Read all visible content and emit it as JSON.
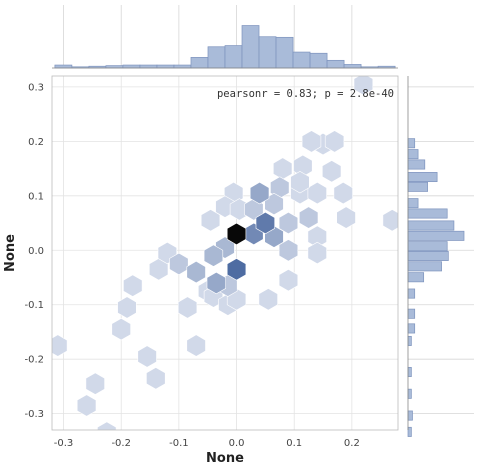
{
  "chart_data": {
    "type": "hexbin",
    "xlabel": "None",
    "ylabel": "None",
    "xlim": [
      -0.32,
      0.28
    ],
    "ylim": [
      -0.33,
      0.32
    ],
    "xticks": [
      "-0.3",
      "-0.2",
      "-0.1",
      "0.0",
      "0.1",
      "0.2"
    ],
    "xtick_values": [
      -0.3,
      -0.2,
      -0.1,
      0.0,
      0.1,
      0.2
    ],
    "yticks": [
      "0.3",
      "0.2",
      "0.1",
      "0.0",
      "-0.1",
      "-0.2",
      "-0.3"
    ],
    "ytick_values": [
      0.3,
      0.2,
      0.1,
      0.0,
      -0.1,
      -0.2,
      -0.3
    ],
    "annotation": "pearsonr = 0.83; p = 2.8e-40",
    "grid": true,
    "colormap_color": "#2c4f8f",
    "hexbins": [
      {
        "x": 0.0,
        "y": 0.03,
        "count": 10
      },
      {
        "x": 0.05,
        "y": 0.05,
        "count": 7
      },
      {
        "x": 0.0,
        "y": -0.035,
        "count": 8
      },
      {
        "x": 0.03,
        "y": 0.03,
        "count": 6
      },
      {
        "x": 0.065,
        "y": 0.025,
        "count": 4
      },
      {
        "x": 0.04,
        "y": 0.105,
        "count": 4
      },
      {
        "x": -0.02,
        "y": 0.005,
        "count": 3
      },
      {
        "x": 0.03,
        "y": 0.075,
        "count": 2
      },
      {
        "x": -0.04,
        "y": -0.01,
        "count": 3
      },
      {
        "x": -0.07,
        "y": -0.04,
        "count": 3
      },
      {
        "x": -0.035,
        "y": -0.06,
        "count": 4
      },
      {
        "x": -0.1,
        "y": -0.025,
        "count": 2
      },
      {
        "x": -0.015,
        "y": -0.065,
        "count": 2
      },
      {
        "x": 0.09,
        "y": 0.05,
        "count": 2
      },
      {
        "x": 0.075,
        "y": 0.115,
        "count": 2
      },
      {
        "x": 0.09,
        "y": 0.0,
        "count": 2
      },
      {
        "x": 0.125,
        "y": 0.06,
        "count": 2
      },
      {
        "x": 0.065,
        "y": 0.085,
        "count": 2
      },
      {
        "x": -0.005,
        "y": 0.105,
        "count": 1
      },
      {
        "x": -0.045,
        "y": 0.055,
        "count": 1
      },
      {
        "x": -0.02,
        "y": 0.08,
        "count": 1
      },
      {
        "x": 0.005,
        "y": 0.075,
        "count": 1
      },
      {
        "x": -0.05,
        "y": -0.075,
        "count": 1
      },
      {
        "x": -0.085,
        "y": -0.105,
        "count": 1
      },
      {
        "x": -0.04,
        "y": -0.085,
        "count": 1
      },
      {
        "x": -0.015,
        "y": -0.1,
        "count": 1
      },
      {
        "x": 0.0,
        "y": -0.09,
        "count": 1
      },
      {
        "x": -0.135,
        "y": -0.035,
        "count": 1
      },
      {
        "x": -0.12,
        "y": -0.005,
        "count": 1
      },
      {
        "x": 0.11,
        "y": 0.105,
        "count": 1
      },
      {
        "x": 0.115,
        "y": 0.155,
        "count": 1
      },
      {
        "x": 0.14,
        "y": 0.105,
        "count": 1
      },
      {
        "x": 0.165,
        "y": 0.145,
        "count": 1
      },
      {
        "x": 0.185,
        "y": 0.105,
        "count": 1
      },
      {
        "x": 0.15,
        "y": 0.195,
        "count": 1
      },
      {
        "x": 0.13,
        "y": 0.2,
        "count": 1
      },
      {
        "x": 0.17,
        "y": 0.2,
        "count": 1
      },
      {
        "x": 0.11,
        "y": 0.125,
        "count": 1
      },
      {
        "x": 0.19,
        "y": 0.06,
        "count": 1
      },
      {
        "x": 0.14,
        "y": 0.025,
        "count": 1
      },
      {
        "x": 0.14,
        "y": -0.005,
        "count": 1
      },
      {
        "x": 0.09,
        "y": -0.055,
        "count": 1
      },
      {
        "x": 0.055,
        "y": -0.09,
        "count": 1
      },
      {
        "x": 0.27,
        "y": 0.055,
        "count": 1
      },
      {
        "x": 0.22,
        "y": 0.305,
        "count": 1
      },
      {
        "x": 0.08,
        "y": 0.15,
        "count": 1
      },
      {
        "x": -0.19,
        "y": -0.105,
        "count": 1
      },
      {
        "x": -0.2,
        "y": -0.145,
        "count": 1
      },
      {
        "x": -0.155,
        "y": -0.195,
        "count": 1
      },
      {
        "x": -0.14,
        "y": -0.235,
        "count": 1
      },
      {
        "x": -0.245,
        "y": -0.245,
        "count": 1
      },
      {
        "x": -0.26,
        "y": -0.285,
        "count": 1
      },
      {
        "x": -0.31,
        "y": -0.175,
        "count": 1
      },
      {
        "x": -0.225,
        "y": -0.335,
        "count": 1
      },
      {
        "x": -0.07,
        "y": -0.175,
        "count": 1
      },
      {
        "x": -0.18,
        "y": -0.065,
        "count": 1
      }
    ],
    "top_histogram": {
      "bin_start": -0.315,
      "bin_width": 0.0295,
      "heights": [
        0.05,
        0.02,
        0.03,
        0.04,
        0.05,
        0.05,
        0.05,
        0.05,
        0.18,
        0.36,
        0.38,
        0.72,
        0.53,
        0.52,
        0.27,
        0.25,
        0.13,
        0.06,
        0.02,
        0.03
      ]
    },
    "right_histogram": {
      "bins": [
        {
          "y0": 0.205,
          "y1": 0.188,
          "value": 0.12
        },
        {
          "y0": 0.185,
          "y1": 0.168,
          "value": 0.18
        },
        {
          "y0": 0.166,
          "y1": 0.149,
          "value": 0.3
        },
        {
          "y0": 0.143,
          "y1": 0.126,
          "value": 0.52
        },
        {
          "y0": 0.125,
          "y1": 0.108,
          "value": 0.35
        },
        {
          "y0": 0.095,
          "y1": 0.078,
          "value": 0.18
        },
        {
          "y0": 0.076,
          "y1": 0.059,
          "value": 0.7
        },
        {
          "y0": 0.054,
          "y1": 0.037,
          "value": 0.82
        },
        {
          "y0": 0.035,
          "y1": 0.018,
          "value": 1.0
        },
        {
          "y0": 0.016,
          "y1": -0.001,
          "value": 0.7
        },
        {
          "y0": -0.002,
          "y1": -0.019,
          "value": 0.72
        },
        {
          "y0": -0.021,
          "y1": -0.038,
          "value": 0.6
        },
        {
          "y0": -0.041,
          "y1": -0.058,
          "value": 0.28
        },
        {
          "y0": -0.071,
          "y1": -0.088,
          "value": 0.12
        },
        {
          "y0": -0.108,
          "y1": -0.125,
          "value": 0.12
        },
        {
          "y0": -0.135,
          "y1": -0.152,
          "value": 0.12
        },
        {
          "y0": -0.158,
          "y1": -0.175,
          "value": 0.06
        },
        {
          "y0": -0.215,
          "y1": -0.232,
          "value": 0.06
        },
        {
          "y0": -0.255,
          "y1": -0.272,
          "value": 0.06
        },
        {
          "y0": -0.295,
          "y1": -0.312,
          "value": 0.08
        },
        {
          "y0": -0.325,
          "y1": -0.342,
          "value": 0.06
        }
      ]
    },
    "hist_fill": "#a9bbd9",
    "hist_edge": "#7d93bd"
  }
}
